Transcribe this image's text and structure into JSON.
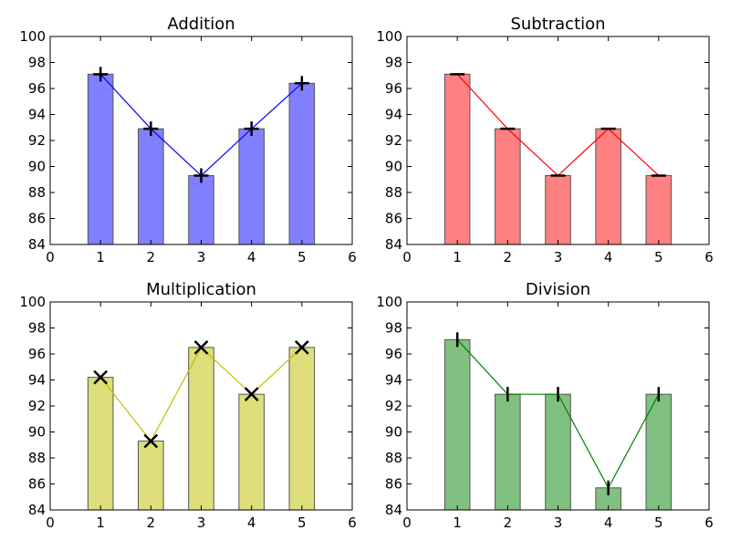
{
  "chart_data": [
    {
      "type": "bar",
      "title": "Addition",
      "x": [
        1,
        2,
        3,
        4,
        5
      ],
      "values": [
        97.1,
        92.9,
        89.3,
        92.9,
        96.4
      ],
      "xlim": [
        0,
        6
      ],
      "ylim": [
        84,
        100
      ],
      "xticks": [
        0,
        1,
        2,
        3,
        4,
        5,
        6
      ],
      "yticks": [
        84,
        86,
        88,
        90,
        92,
        94,
        96,
        98,
        100
      ],
      "bar_color": "#8080ff",
      "line_color": "#0000ff",
      "overlay": "line",
      "marker": "plus",
      "grid": false
    },
    {
      "type": "bar",
      "title": "Subtraction",
      "x": [
        1,
        2,
        3,
        4,
        5
      ],
      "values": [
        97.1,
        92.9,
        89.3,
        92.9,
        89.3
      ],
      "xlim": [
        0,
        6
      ],
      "ylim": [
        84,
        100
      ],
      "xticks": [
        0,
        1,
        2,
        3,
        4,
        5,
        6
      ],
      "yticks": [
        84,
        86,
        88,
        90,
        92,
        94,
        96,
        98,
        100
      ],
      "bar_color": "#ff8080",
      "line_color": "#ff0000",
      "overlay": "line",
      "marker": "hline",
      "grid": false
    },
    {
      "type": "bar",
      "title": "Multiplication",
      "x": [
        1,
        2,
        3,
        4,
        5
      ],
      "values": [
        94.2,
        89.3,
        96.5,
        92.9,
        96.5
      ],
      "xlim": [
        0,
        6
      ],
      "ylim": [
        84,
        100
      ],
      "xticks": [
        0,
        1,
        2,
        3,
        4,
        5,
        6
      ],
      "yticks": [
        84,
        86,
        88,
        90,
        92,
        94,
        96,
        98,
        100
      ],
      "bar_color": "#dede7a",
      "line_color": "#bfbf00",
      "overlay": "line",
      "marker": "x",
      "grid": false
    },
    {
      "type": "bar",
      "title": "Division",
      "x": [
        1,
        2,
        3,
        4,
        5
      ],
      "values": [
        97.1,
        92.9,
        92.9,
        85.7,
        92.9
      ],
      "xlim": [
        0,
        6
      ],
      "ylim": [
        84,
        100
      ],
      "xticks": [
        0,
        1,
        2,
        3,
        4,
        5,
        6
      ],
      "yticks": [
        84,
        86,
        88,
        90,
        92,
        94,
        96,
        98,
        100
      ],
      "bar_color": "#80c080",
      "line_color": "#008000",
      "overlay": "line",
      "marker": "vline",
      "grid": false
    }
  ]
}
